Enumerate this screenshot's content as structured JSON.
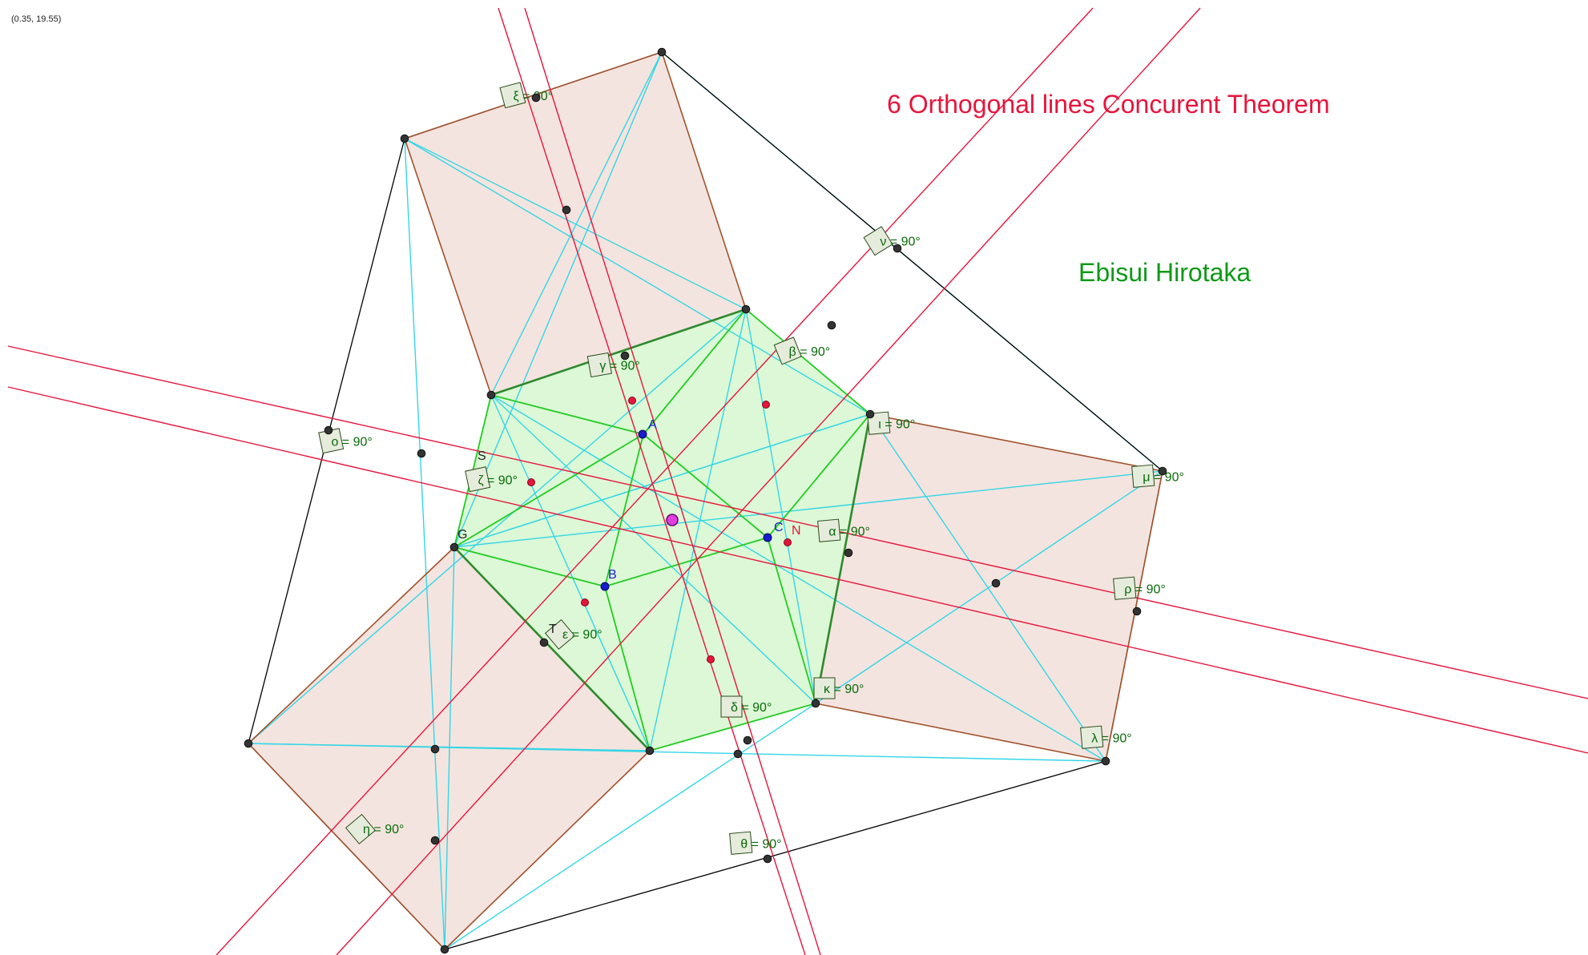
{
  "coordinate_readout": "(0.35, 19.55)",
  "title": "6 Orthogonal lines Concurent Theorem",
  "author": "Ebisui Hirotaka",
  "colors": {
    "square_fill": "#f4e4df",
    "square_edge": "#a0522d",
    "inner_fill": "#dcf8d6",
    "inner_edge": "#22cc22",
    "cyan": "#33d6e6",
    "red": "#e8143c",
    "black": "#000000",
    "point_dark": "#333333",
    "point_blue": "#1a1ad0",
    "point_red": "#e8143c",
    "center": "#e040e0",
    "angle_label": "#0a6a0a",
    "angle_box_fill": "#e6ecdc",
    "angle_box_edge": "#2a4a1a"
  },
  "point_labels": [
    {
      "key": "A",
      "text": "A",
      "color": "blue"
    },
    {
      "key": "B",
      "text": "B",
      "color": "blue"
    },
    {
      "key": "C",
      "text": "C",
      "color": "blue"
    },
    {
      "key": "N",
      "text": "N",
      "color": "red"
    },
    {
      "key": "S",
      "text": "S",
      "color": "dark"
    },
    {
      "key": "G",
      "text": "G",
      "color": "dark"
    },
    {
      "key": "T",
      "text": "T",
      "color": "dark"
    }
  ],
  "angle_labels": [
    {
      "key": "xi",
      "text": "ξ = 90°"
    },
    {
      "key": "nu",
      "text": "ν = 90°"
    },
    {
      "key": "beta",
      "text": "β = 90°"
    },
    {
      "key": "gamma",
      "text": "γ = 90°"
    },
    {
      "key": "iota",
      "text": "ι = 90°"
    },
    {
      "key": "omicron",
      "text": "ο = 90°"
    },
    {
      "key": "zeta",
      "text": "ζ = 90°"
    },
    {
      "key": "mu",
      "text": "μ = 90°"
    },
    {
      "key": "alpha",
      "text": "α = 90°"
    },
    {
      "key": "rho",
      "text": "ρ = 90°"
    },
    {
      "key": "epsilon",
      "text": "ε = 90°"
    },
    {
      "key": "kappa",
      "text": "κ = 90°"
    },
    {
      "key": "delta",
      "text": "δ = 90°"
    },
    {
      "key": "lambda",
      "text": "λ = 90°"
    },
    {
      "key": "eta",
      "text": "η = 90°"
    },
    {
      "key": "theta",
      "text": "θ = 90°"
    }
  ]
}
